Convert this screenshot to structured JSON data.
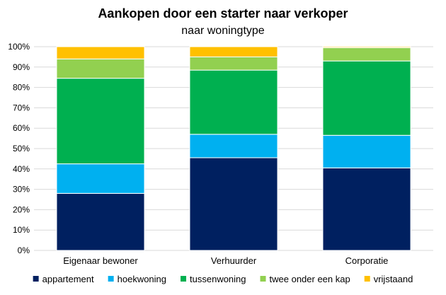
{
  "chart_data": {
    "type": "bar",
    "stacked": true,
    "title": "Aankopen door een starter naar verkoper",
    "subtitle": "naar woningtype",
    "categories": [
      "Eigenaar bewoner",
      "Verhuurder",
      "Corporatie"
    ],
    "ylim": [
      0,
      100
    ],
    "y_ticks": [
      "0%",
      "10%",
      "20%",
      "30%",
      "40%",
      "50%",
      "60%",
      "70%",
      "80%",
      "90%",
      "100%"
    ],
    "grid": true,
    "legend_position": "bottom",
    "series": [
      {
        "name": "appartement",
        "color": "#002060",
        "values": [
          28,
          45.5,
          40.5
        ]
      },
      {
        "name": "hoekwoning",
        "color": "#00B0F0",
        "values": [
          14.5,
          11.5,
          16
        ]
      },
      {
        "name": "tussenwoning",
        "color": "#00B050",
        "values": [
          42,
          31.5,
          36.5
        ]
      },
      {
        "name": "twee onder een kap",
        "color": "#92D050",
        "values": [
          9.5,
          6.5,
          6.5
        ]
      },
      {
        "name": "vrijstaand",
        "color": "#FFC000",
        "values": [
          6,
          5,
          0.5
        ]
      }
    ]
  }
}
